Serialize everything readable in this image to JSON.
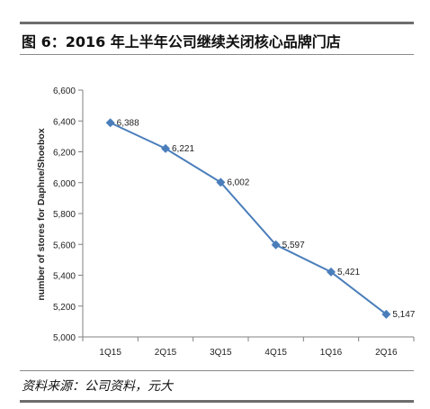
{
  "figure": {
    "title": "图 6：2016 年上半年公司继续关闭核心品牌门店",
    "source": "资料来源：公司资料，元大"
  },
  "colors": {
    "series": "#4a7ebb",
    "axis": "#808080",
    "text": "#222222"
  },
  "chart_data": {
    "type": "line",
    "title": "",
    "xlabel": "",
    "ylabel": "number of stores for Daphne/Shoebox",
    "categories": [
      "1Q15",
      "2Q15",
      "3Q15",
      "4Q15",
      "1Q16",
      "2Q16"
    ],
    "series": [
      {
        "values": [
          6388,
          6221,
          6002,
          5597,
          5421,
          5147
        ]
      }
    ],
    "data_labels": [
      "6,388",
      "6,221",
      "6,002",
      "5,597",
      "5,421",
      "5,147"
    ],
    "ylim": [
      5000,
      6600
    ],
    "yticks": [
      5000,
      5200,
      5400,
      5600,
      5800,
      6000,
      6200,
      6400,
      6600
    ],
    "ytick_labels": [
      "5,000",
      "5,200",
      "5,400",
      "5,600",
      "5,800",
      "6,000",
      "6,200",
      "6,400",
      "6,600"
    ],
    "marker": "diamond",
    "grid": false,
    "legend": "none"
  }
}
